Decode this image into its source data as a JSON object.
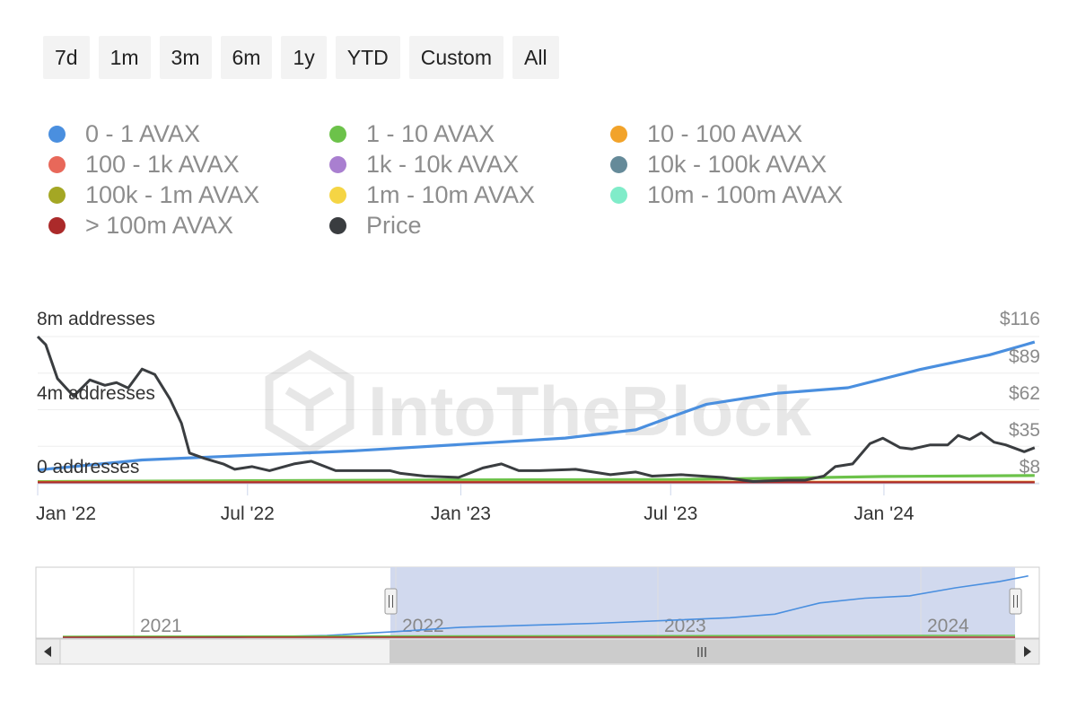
{
  "range_buttons": [
    "7d",
    "1m",
    "3m",
    "6m",
    "1y",
    "YTD",
    "Custom",
    "All"
  ],
  "legend": [
    {
      "label": "0 - 1 AVAX",
      "color": "#4a8fdf"
    },
    {
      "label": "1 - 10 AVAX",
      "color": "#6cc24a"
    },
    {
      "label": "10 - 100 AVAX",
      "color": "#f2a32a"
    },
    {
      "label": "100 - 1k AVAX",
      "color": "#e8685a"
    },
    {
      "label": "1k - 10k AVAX",
      "color": "#a97fd0"
    },
    {
      "label": "10k - 100k AVAX",
      "color": "#658a99"
    },
    {
      "label": "100k - 1m AVAX",
      "color": "#a4a724"
    },
    {
      "label": "1m - 10m AVAX",
      "color": "#f5d544"
    },
    {
      "label": "10m - 100m AVAX",
      "color": "#80ecc9"
    },
    {
      "label": "> 100m AVAX",
      "color": "#ab2a2a"
    },
    {
      "label": "Price",
      "color": "#3a3d40"
    }
  ],
  "watermark": "IntoTheBlock",
  "chart_data": {
    "type": "line",
    "x_tick_labels": [
      "Jan '22",
      "Jul '22",
      "Jan '23",
      "Jul '23",
      "Jan '24"
    ],
    "y_left_ticks": [
      "8m addresses",
      "4m addresses",
      "0 addresses"
    ],
    "y_right_ticks": [
      "$116",
      "$89",
      "$62",
      "$35",
      "$8"
    ],
    "ylim_left": [
      0,
      8000000
    ],
    "ylim_right": [
      8,
      116
    ],
    "series": [
      {
        "name": "0 - 1 AVAX",
        "axis": "left",
        "x": [
          "2022-01-01",
          "2022-04-01",
          "2022-07-01",
          "2022-10-01",
          "2023-01-01",
          "2023-04-01",
          "2023-06-01",
          "2023-07-01",
          "2023-08-01",
          "2023-10-01",
          "2023-12-01",
          "2024-02-01",
          "2024-04-01",
          "2024-05-10"
        ],
        "values": [
          700000,
          1250000,
          1500000,
          1750000,
          2100000,
          2450000,
          2900000,
          3600000,
          4300000,
          4900000,
          5200000,
          6200000,
          7000000,
          7700000
        ]
      },
      {
        "name": "1 - 10 AVAX",
        "axis": "left",
        "x": [
          "2022-01-01",
          "2022-07-01",
          "2023-01-01",
          "2023-07-01",
          "2023-10-01",
          "2024-01-01",
          "2024-05-10"
        ],
        "values": [
          70000,
          120000,
          160000,
          180000,
          250000,
          350000,
          400000
        ]
      },
      {
        "name": "10 - 100 AVAX",
        "axis": "left",
        "x": [
          "2022-01-01",
          "2024-05-10"
        ],
        "values": [
          30000,
          40000
        ]
      },
      {
        "name": "> 100m AVAX",
        "axis": "left",
        "x": [
          "2022-01-01",
          "2024-05-10"
        ],
        "values": [
          5000,
          5000
        ]
      },
      {
        "name": "Price",
        "axis": "right",
        "x": [
          "2022-01-01",
          "2022-01-08",
          "2022-01-18",
          "2022-02-01",
          "2022-02-15",
          "2022-02-28",
          "2022-03-10",
          "2022-03-20",
          "2022-04-01",
          "2022-04-12",
          "2022-04-25",
          "2022-05-05",
          "2022-05-12",
          "2022-05-25",
          "2022-06-10",
          "2022-06-20",
          "2022-07-05",
          "2022-07-20",
          "2022-08-10",
          "2022-08-25",
          "2022-09-15",
          "2022-10-10",
          "2022-11-01",
          "2022-11-10",
          "2022-12-01",
          "2022-12-30",
          "2023-01-20",
          "2023-02-05",
          "2023-02-20",
          "2023-03-10",
          "2023-04-10",
          "2023-05-10",
          "2023-06-01",
          "2023-06-15",
          "2023-07-10",
          "2023-08-15",
          "2023-09-10",
          "2023-10-10",
          "2023-10-25",
          "2023-11-10",
          "2023-11-20",
          "2023-12-05",
          "2023-12-20",
          "2023-12-31",
          "2024-01-15",
          "2024-01-25",
          "2024-02-10",
          "2024-02-25",
          "2024-03-05",
          "2024-03-15",
          "2024-03-25",
          "2024-04-05",
          "2024-04-15",
          "2024-05-01",
          "2024-05-10"
        ],
        "values": [
          116,
          110,
          85,
          72,
          84,
          80,
          82,
          78,
          92,
          88,
          70,
          52,
          30,
          26,
          22,
          18,
          20,
          17,
          22,
          24,
          17,
          17,
          17,
          15,
          13,
          12,
          19,
          22,
          17,
          17,
          18,
          14,
          16,
          13,
          14,
          12,
          9,
          10,
          10,
          13,
          20,
          22,
          37,
          41,
          34,
          33,
          36,
          36,
          43,
          40,
          45,
          38,
          36,
          31,
          34
        ]
      }
    ]
  }
}
